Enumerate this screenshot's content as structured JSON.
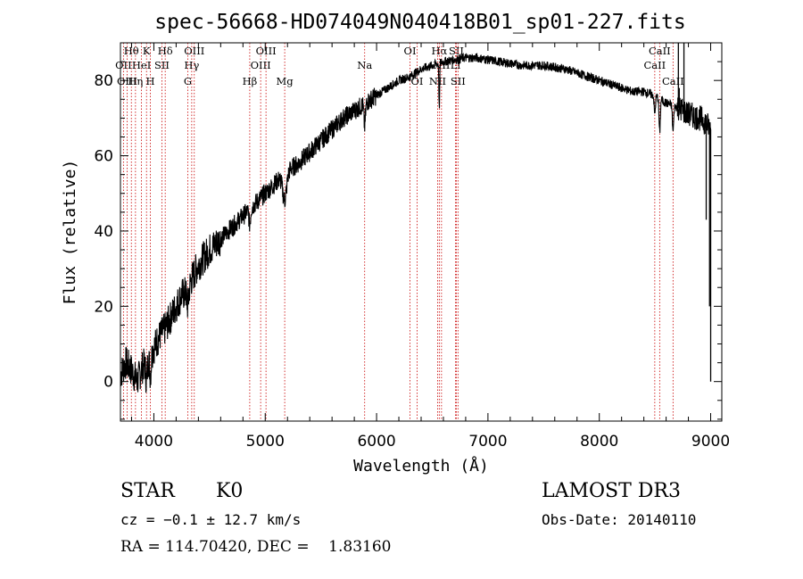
{
  "chart_data": {
    "type": "line",
    "title": "spec-56668-HD074049N040418B01_sp01-227.fits",
    "xlabel": "Wavelength (Å)",
    "ylabel": "Flux (relative)",
    "xlim": [
      3700,
      9100
    ],
    "ylim": [
      -10.5,
      90
    ],
    "xticks": [
      4000,
      5000,
      6000,
      7000,
      8000,
      9000
    ],
    "yticks": [
      0,
      20,
      40,
      60,
      80
    ],
    "grid": false,
    "line_color": "#000000",
    "marker_color": "#c80000",
    "spectral_lines": [
      {
        "name": "Hθ",
        "wavelength": 3798,
        "row": 0
      },
      {
        "name": "OII",
        "wavelength": 3727,
        "row": 1
      },
      {
        "name": "OIII",
        "wavelength": 3760,
        "row": 2
      },
      {
        "name": "K",
        "wavelength": 3934,
        "row": 0
      },
      {
        "name": "HeI",
        "wavelength": 3889,
        "row": 1
      },
      {
        "name": "Hη",
        "wavelength": 3835,
        "row": 2
      },
      {
        "name": "Hδ",
        "wavelength": 4102,
        "row": 0
      },
      {
        "name": "SII",
        "wavelength": 4072,
        "row": 1
      },
      {
        "name": "H",
        "wavelength": 3969,
        "row": 2
      },
      {
        "name": "OIII",
        "wavelength": 4363,
        "row": 0
      },
      {
        "name": "Hγ",
        "wavelength": 4340,
        "row": 1
      },
      {
        "name": "G",
        "wavelength": 4305,
        "row": 2
      },
      {
        "name": "OIII",
        "wavelength": 5007,
        "row": 0
      },
      {
        "name": "OIII",
        "wavelength": 4959,
        "row": 1
      },
      {
        "name": "Hβ",
        "wavelength": 4861,
        "row": 2
      },
      {
        "name": "Mg",
        "wavelength": 5175,
        "row": 2
      },
      {
        "name": "Na",
        "wavelength": 5893,
        "row": 1
      },
      {
        "name": "OI",
        "wavelength": 6300,
        "row": 0
      },
      {
        "name": "OI",
        "wavelength": 6364,
        "row": 2
      },
      {
        "name": "Hα",
        "wavelength": 6563,
        "row": 0
      },
      {
        "name": "SII",
        "wavelength": 6716,
        "row": 0
      },
      {
        "name": "NII",
        "wavelength": 6583,
        "row": 1
      },
      {
        "name": "Li",
        "wavelength": 6708,
        "row": 1
      },
      {
        "name": "NII",
        "wavelength": 6548,
        "row": 2
      },
      {
        "name": "SII",
        "wavelength": 6731,
        "row": 2
      },
      {
        "name": "CaII",
        "wavelength": 8542,
        "row": 0
      },
      {
        "name": "CaII",
        "wavelength": 8498,
        "row": 1
      },
      {
        "name": "CaII",
        "wavelength": 8662,
        "row": 2
      }
    ],
    "spectrum_anchors": [
      [
        3700,
        2
      ],
      [
        3750,
        5
      ],
      [
        3800,
        3
      ],
      [
        3850,
        0
      ],
      [
        3900,
        4
      ],
      [
        3950,
        6
      ],
      [
        4000,
        9
      ],
      [
        4050,
        12
      ],
      [
        4100,
        14
      ],
      [
        4150,
        17
      ],
      [
        4200,
        20
      ],
      [
        4250,
        23
      ],
      [
        4300,
        24
      ],
      [
        4350,
        28
      ],
      [
        4400,
        31
      ],
      [
        4500,
        35
      ],
      [
        4600,
        38
      ],
      [
        4700,
        41
      ],
      [
        4800,
        44
      ],
      [
        4900,
        47
      ],
      [
        5000,
        50
      ],
      [
        5100,
        53
      ],
      [
        5200,
        56
      ],
      [
        5300,
        58
      ],
      [
        5400,
        61
      ],
      [
        5500,
        64
      ],
      [
        5600,
        67
      ],
      [
        5700,
        70
      ],
      [
        5800,
        72
      ],
      [
        5900,
        74
      ],
      [
        6000,
        76
      ],
      [
        6100,
        78
      ],
      [
        6200,
        80
      ],
      [
        6300,
        81
      ],
      [
        6400,
        83
      ],
      [
        6500,
        84
      ],
      [
        6600,
        85
      ],
      [
        6700,
        85.5
      ],
      [
        6800,
        86
      ],
      [
        6900,
        86
      ],
      [
        7000,
        85.5
      ],
      [
        7100,
        85
      ],
      [
        7200,
        84.5
      ],
      [
        7300,
        84
      ],
      [
        7400,
        84
      ],
      [
        7500,
        84
      ],
      [
        7600,
        83.5
      ],
      [
        7700,
        83
      ],
      [
        7800,
        82
      ],
      [
        7900,
        81
      ],
      [
        8000,
        80
      ],
      [
        8100,
        79
      ],
      [
        8200,
        78
      ],
      [
        8300,
        77
      ],
      [
        8400,
        77
      ],
      [
        8500,
        76
      ],
      [
        8600,
        74
      ],
      [
        8700,
        73
      ],
      [
        8800,
        71
      ],
      [
        8900,
        70
      ],
      [
        8950,
        69
      ],
      [
        9000,
        67
      ]
    ],
    "absorption_dips": [
      [
        3934,
        5,
        10
      ],
      [
        3969,
        5,
        10
      ],
      [
        4305,
        4,
        12
      ],
      [
        4861,
        4,
        10
      ],
      [
        5175,
        7,
        25
      ],
      [
        5893,
        6,
        10
      ],
      [
        6563,
        12,
        5
      ],
      [
        8498,
        5,
        8
      ],
      [
        8542,
        9,
        8
      ],
      [
        8662,
        7,
        8
      ]
    ],
    "spikes": [
      [
        8710,
        97
      ],
      [
        8718,
        78
      ],
      [
        8760,
        90
      ],
      [
        8960,
        43
      ],
      [
        8990,
        20
      ],
      [
        9000,
        0
      ]
    ]
  },
  "info": {
    "object_class": "STAR",
    "subclass": "K0",
    "survey": "LAMOST DR3",
    "redshift": "cz = −0.1 ± 12.7 km/s",
    "obs_date": "Obs-Date: 20140110",
    "coords": "RA = 114.70420, DEC =    1.83160"
  }
}
